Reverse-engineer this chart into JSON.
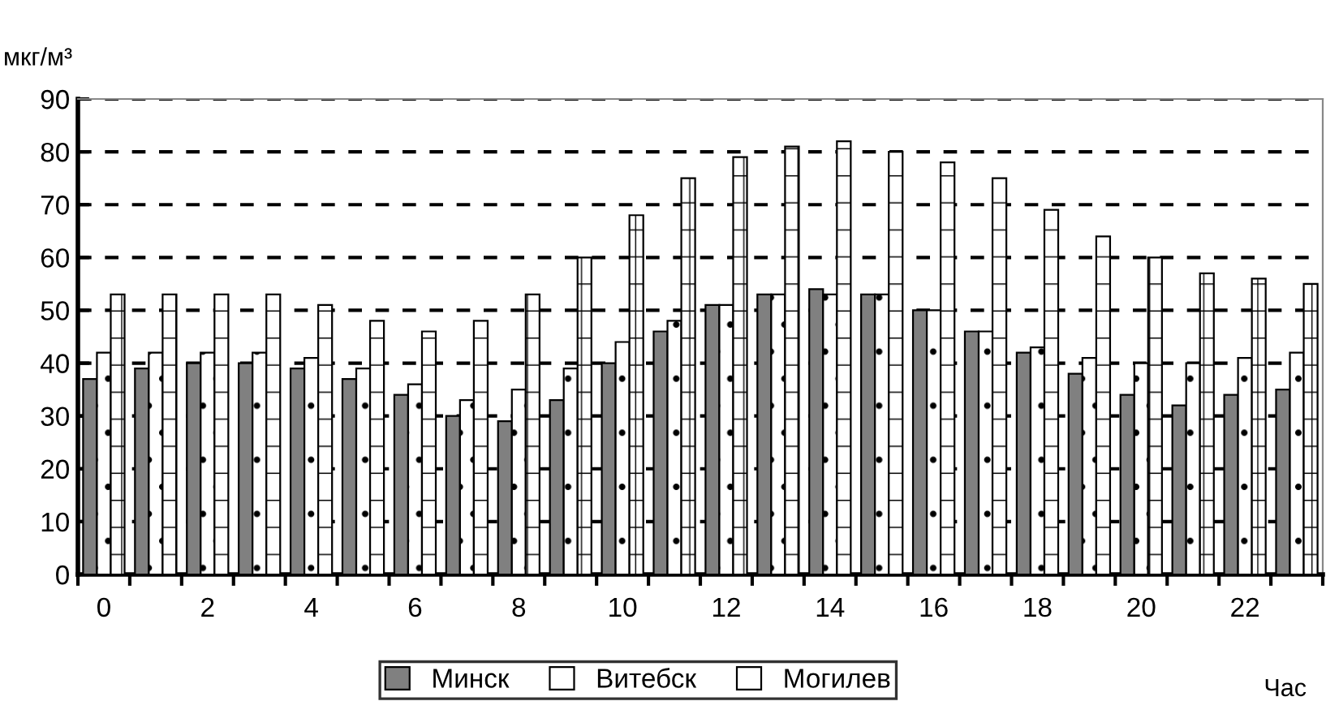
{
  "chart_data": {
    "type": "bar",
    "ylabel": "мкг/м³",
    "xlabel": "Час",
    "categories": [
      "0",
      null,
      "2",
      null,
      "4",
      null,
      "6",
      null,
      "8",
      null,
      "10",
      null,
      "12",
      null,
      "14",
      null,
      "16",
      null,
      "18",
      null,
      "20",
      null,
      "22",
      null
    ],
    "series": [
      {
        "name": "Минск",
        "color": "#808080",
        "values": [
          37,
          39,
          40,
          40,
          39,
          37,
          34,
          30,
          29,
          33,
          40,
          46,
          51,
          53,
          54,
          53,
          50,
          46,
          42,
          38,
          34,
          32,
          34,
          35
        ]
      },
      {
        "name": "Витебск",
        "color": "#ffffff",
        "values": [
          42,
          42,
          42,
          42,
          41,
          39,
          36,
          33,
          35,
          39,
          44,
          48,
          51,
          53,
          53,
          53,
          50,
          46,
          43,
          41,
          40,
          40,
          41,
          42
        ]
      },
      {
        "name": "Могилев",
        "color": "#ffffff",
        "values": [
          53,
          53,
          53,
          53,
          51,
          48,
          46,
          48,
          53,
          60,
          68,
          75,
          79,
          81,
          82,
          80,
          78,
          75,
          69,
          64,
          60,
          57,
          56,
          55
        ]
      }
    ],
    "ylim": [
      0,
      90
    ],
    "yticks": [
      0,
      10,
      20,
      30,
      40,
      50,
      60,
      70,
      80,
      90
    ],
    "grid": "y",
    "legend": "bottom"
  }
}
